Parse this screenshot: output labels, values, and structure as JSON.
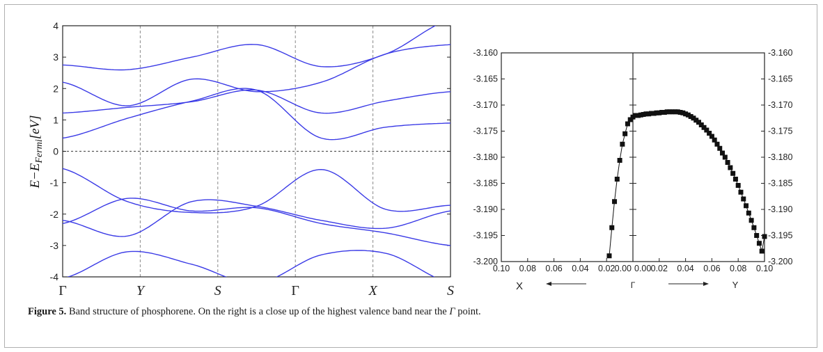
{
  "caption": {
    "label": "Figure 5.",
    "text_before": " Band structure of phosphorene. On the right is a close up of the highest valence band near the ",
    "gamma": "Γ",
    "text_after": " point."
  },
  "chart_data": [
    {
      "type": "line",
      "ylabel": "E−E_Fermi[eV]",
      "ylim": [
        -4,
        4
      ],
      "yticks": [
        "-4",
        "-3",
        "-2",
        "-1",
        "0",
        "1",
        "2",
        "3",
        "4"
      ],
      "xticks": [
        "Γ",
        "Y",
        "S",
        "Γ",
        "X",
        "S"
      ],
      "line_color": "#3a3ae6",
      "fermi_level": 0,
      "series": [
        {
          "values": [
            0.42,
            1.05,
            1.6,
            1.95,
            0.42,
            0.77,
            0.9
          ]
        },
        {
          "values": [
            1.22,
            1.4,
            1.58,
            1.95,
            1.22,
            1.6,
            1.9
          ]
        },
        {
          "values": [
            2.2,
            1.45,
            2.3,
            1.9,
            2.2,
            3.1,
            3.4
          ]
        },
        {
          "values": [
            2.75,
            2.6,
            3.0,
            3.4,
            2.7,
            3.1,
            4.2
          ]
        },
        {
          "values": [
            -0.55,
            -1.6,
            -1.95,
            -1.75,
            -0.58,
            -1.85,
            -1.72
          ]
        },
        {
          "values": [
            -2.2,
            -2.7,
            -1.6,
            -1.75,
            -2.2,
            -2.45,
            -1.9
          ]
        },
        {
          "values": [
            -2.3,
            -1.5,
            -1.9,
            -1.8,
            -2.3,
            -2.6,
            -3.0
          ]
        },
        {
          "values": [
            -4.05,
            -3.2,
            -3.6,
            -4.2,
            -3.3,
            -3.25,
            -4.2
          ]
        }
      ]
    },
    {
      "type": "line",
      "ylim": [
        -3.2,
        -3.16
      ],
      "yticks": [
        "-3.200",
        "-3.195",
        "-3.190",
        "-3.185",
        "-3.180",
        "-3.175",
        "-3.170",
        "-3.165",
        "-3.160"
      ],
      "xticks_left": [
        "0.10",
        "0.08",
        "0.06",
        "0.04",
        "0.02",
        "0.00"
      ],
      "xticks_right": [
        "0.00",
        "0.02",
        "0.04",
        "0.06",
        "0.08",
        "0.10"
      ],
      "direction_labels": {
        "left": "X",
        "center": "Γ",
        "right": "Y"
      },
      "series": [
        {
          "name": "",
          "x": [
            -0.018,
            -0.016,
            -0.014,
            -0.012,
            -0.01,
            -0.008,
            -0.006,
            -0.004,
            -0.002,
            0.0,
            0.002,
            0.004,
            0.006,
            0.008,
            0.01,
            0.012,
            0.014,
            0.016,
            0.018,
            0.02,
            0.022,
            0.024,
            0.026,
            0.028,
            0.03,
            0.032,
            0.034,
            0.036,
            0.038,
            0.04,
            0.042,
            0.044,
            0.046,
            0.048,
            0.05,
            0.052,
            0.054,
            0.056,
            0.058,
            0.06,
            0.062,
            0.064,
            0.066,
            0.068,
            0.07,
            0.072,
            0.074,
            0.076,
            0.078,
            0.08,
            0.082,
            0.084,
            0.086,
            0.088,
            0.09,
            0.092,
            0.094,
            0.096,
            0.098,
            0.1
          ],
          "y": [
            -3.1989,
            -3.1935,
            -3.1885,
            -3.1842,
            -3.1806,
            -3.1775,
            -3.1755,
            -3.1736,
            -3.1728,
            -3.1723,
            -3.172,
            -3.172,
            -3.1719,
            -3.1718,
            -3.1717,
            -3.1717,
            -3.1716,
            -3.1716,
            -3.1715,
            -3.1715,
            -3.1714,
            -3.1714,
            -3.1713,
            -3.1713,
            -3.1713,
            -3.1713,
            -3.1713,
            -3.1714,
            -3.1715,
            -3.1717,
            -3.1719,
            -3.1722,
            -3.1725,
            -3.1729,
            -3.1733,
            -3.1738,
            -3.1743,
            -3.1748,
            -3.1754,
            -3.176,
            -3.1767,
            -3.1775,
            -3.1783,
            -3.1792,
            -3.18,
            -3.181,
            -3.182,
            -3.1831,
            -3.1842,
            -3.1854,
            -3.1867,
            -3.188,
            -3.1893,
            -3.1907,
            -3.1921,
            -3.1935,
            -3.195,
            -3.1965,
            -3.198,
            -3.1952
          ]
        }
      ]
    }
  ]
}
